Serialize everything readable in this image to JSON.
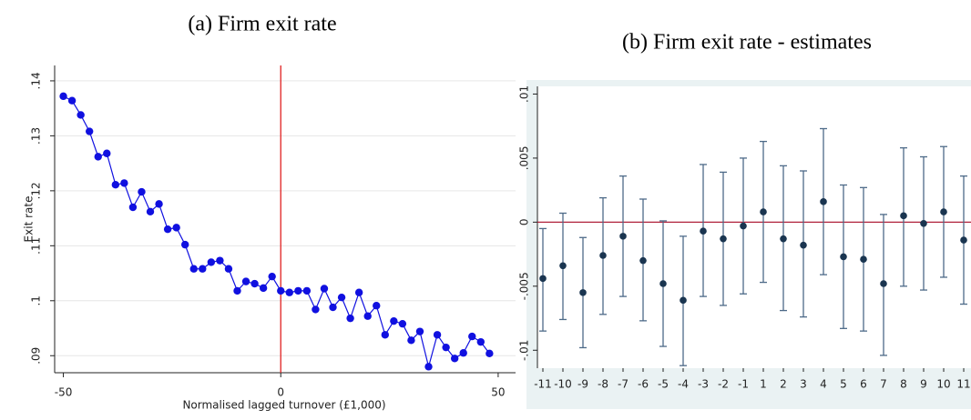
{
  "chart_data": [
    {
      "type": "line",
      "title": "(a) Firm exit rate",
      "x_label": "Normalised lagged turnover (£1,000)",
      "y_label": "Exit rate",
      "x": [
        -50,
        -48,
        -46,
        -44,
        -42,
        -40,
        -38,
        -36,
        -34,
        -32,
        -30,
        -28,
        -26,
        -24,
        -22,
        -20,
        -18,
        -16,
        -14,
        -12,
        -10,
        -8,
        -6,
        -4,
        -2,
        0,
        2,
        4,
        6,
        8,
        10,
        12,
        14,
        16,
        18,
        20,
        22,
        24,
        26,
        28,
        30,
        32,
        34,
        36,
        38,
        40,
        42,
        44,
        46,
        48
      ],
      "series": [
        {
          "name": "Exit rate",
          "color": "#1010e0",
          "values": [
            0.1372,
            0.1364,
            0.1338,
            0.1308,
            0.1262,
            0.1268,
            0.1211,
            0.1214,
            0.117,
            0.1198,
            0.1162,
            0.1176,
            0.113,
            0.1133,
            0.1102,
            0.1058,
            0.1058,
            0.107,
            0.1073,
            0.1058,
            0.1018,
            0.1035,
            0.1031,
            0.1023,
            0.1044,
            0.1018,
            0.1015,
            0.1018,
            0.1018,
            0.0984,
            0.1022,
            0.0988,
            0.1006,
            0.0968,
            0.1015,
            0.0972,
            0.0991,
            0.0938,
            0.0963,
            0.0958,
            0.0928,
            0.0944,
            0.088,
            0.0938,
            0.0915,
            0.0895,
            0.0905,
            0.0935,
            0.0925,
            0.0904
          ]
        }
      ],
      "xlim": [
        -52,
        54
      ],
      "xticks": [
        -50,
        0,
        50
      ],
      "ylim": [
        0.0869,
        0.1428
      ],
      "yticks": [
        {
          "value": 0.09,
          "label": ".09"
        },
        {
          "value": 0.1,
          "label": ".1"
        },
        {
          "value": 0.11,
          "label": ".11"
        },
        {
          "value": 0.12,
          "label": ".12"
        },
        {
          "value": 0.13,
          "label": ".13"
        },
        {
          "value": 0.14,
          "label": ".14"
        }
      ],
      "grid": true,
      "vline": 0,
      "vline_color": "#e02020"
    },
    {
      "type": "errorbar",
      "title": "(b) Firm exit rate - estimates",
      "categories": [
        "-11",
        "-10",
        "-9",
        "-8",
        "-7",
        "-6",
        "-5",
        "-4",
        "-3",
        "-2",
        "-1",
        "1",
        "2",
        "3",
        "4",
        "5",
        "6",
        "7",
        "8",
        "9",
        "10",
        "11"
      ],
      "values": [
        -0.0044,
        -0.0034,
        -0.0055,
        -0.0026,
        -0.0011,
        -0.003,
        -0.0048,
        -0.0061,
        -0.0007,
        -0.0013,
        -0.0003,
        0.0008,
        -0.0013,
        -0.0018,
        0.0016,
        -0.0027,
        -0.0029,
        -0.0048,
        0.0005,
        -0.0001,
        0.0008,
        -0.0014
      ],
      "lower": [
        -0.0085,
        -0.0076,
        -0.0098,
        -0.0072,
        -0.0058,
        -0.0077,
        -0.0097,
        -0.0112,
        -0.0058,
        -0.0065,
        -0.0056,
        -0.0047,
        -0.0069,
        -0.0074,
        -0.0041,
        -0.0083,
        -0.0085,
        -0.0104,
        -0.005,
        -0.0053,
        -0.0043,
        -0.0064
      ],
      "upper": [
        -0.0005,
        0.0007,
        -0.0012,
        0.0019,
        0.0036,
        0.0018,
        0.0001,
        -0.0011,
        0.0045,
        0.0039,
        0.005,
        0.0063,
        0.0044,
        0.004,
        0.0073,
        0.0029,
        0.0027,
        0.0006,
        0.0058,
        0.0051,
        0.0059,
        0.0036
      ],
      "color": "#1a3550",
      "ci_color": "#4d6a88",
      "ylim": [
        -0.0114,
        0.0106
      ],
      "yticks": [
        {
          "value": -0.01,
          "label": "-.01"
        },
        {
          "value": -0.005,
          "label": "-.005"
        },
        0,
        {
          "value": 0.005,
          "label": ".005"
        },
        {
          "value": 0.01,
          "label": ".01"
        }
      ],
      "hline": 0,
      "hline_color": "#b0203a"
    }
  ]
}
